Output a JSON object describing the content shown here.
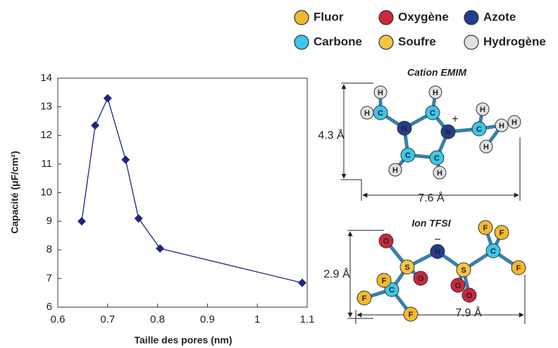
{
  "chart_data": {
    "type": "line",
    "x_label": "Taille des pores (nm)",
    "y_label": "Capacité (μF/cm²)",
    "x": [
      0.648,
      0.675,
      0.7,
      0.736,
      0.762,
      0.805,
      1.09
    ],
    "series": [
      {
        "color": "#1c2580",
        "values": [
          9.0,
          12.35,
          13.3,
          11.15,
          9.1,
          8.05,
          6.85
        ]
      }
    ],
    "xlim": [
      0.6,
      1.1
    ],
    "xticks": [
      0.6,
      0.7,
      0.8,
      0.9,
      1,
      1.1
    ],
    "ylim": [
      6,
      14
    ],
    "yticks": [
      6,
      7,
      8,
      9,
      10,
      11,
      12,
      13,
      14
    ]
  },
  "atom_legend": [
    {
      "name": "Fluor",
      "color": "#f2b92c"
    },
    {
      "name": "Oxygène",
      "color": "#c9283d"
    },
    {
      "name": "Azote",
      "color": "#213f8f"
    },
    {
      "name": "Carbone",
      "color": "#3cc6ea"
    },
    {
      "name": "Soufre",
      "color": "#f5c443"
    },
    {
      "name": "Hydrogène",
      "color": "#e2e2e2"
    }
  ],
  "molecules": [
    {
      "title": "Cation EMIM",
      "charge": "+",
      "height": "4.3 Å",
      "width": "7.6 Å",
      "atoms": [
        "H",
        "H",
        "H",
        "C",
        "C",
        "N",
        "N",
        "C",
        "C",
        "H",
        "H",
        "C",
        "H",
        "H",
        "H",
        "H"
      ]
    },
    {
      "title": "Ion TFSI",
      "charge": "−",
      "height": "2.9 Å",
      "width": "7.9 Å",
      "atoms": [
        "O",
        "N",
        "S",
        "S",
        "O",
        "O",
        "O",
        "C",
        "C",
        "F",
        "F",
        "F",
        "F",
        "F",
        "F"
      ]
    }
  ]
}
